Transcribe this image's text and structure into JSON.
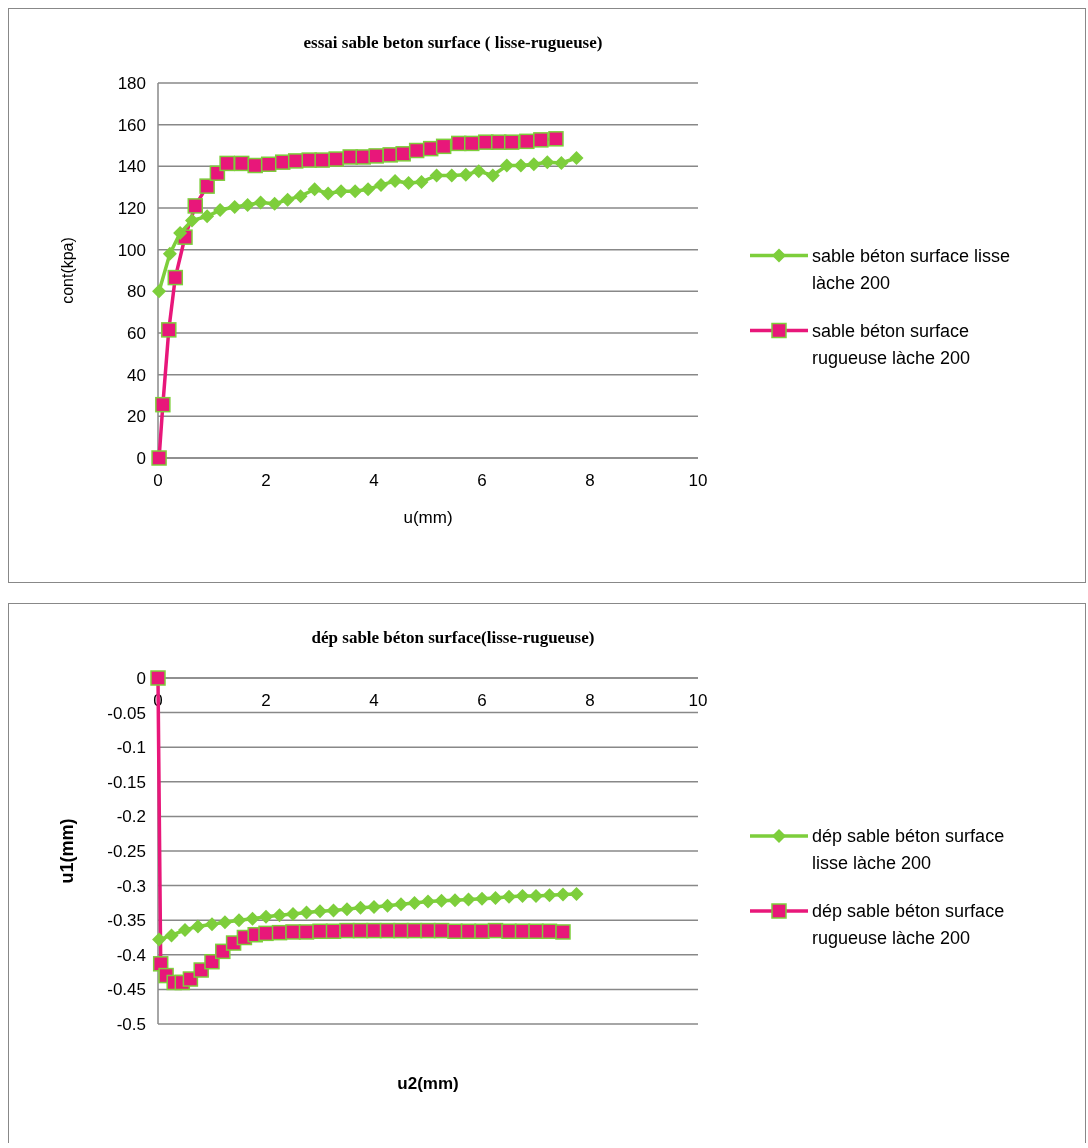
{
  "chart_data": [
    {
      "type": "line",
      "title": "essai sable beton surface ( lisse-rugueuse)",
      "xlabel": "u(mm)",
      "ylabel": "cont(kpa)",
      "xlim": [
        0,
        10
      ],
      "xticks": [
        0,
        2,
        4,
        6,
        8,
        10
      ],
      "ylim": [
        0,
        180
      ],
      "yticks": [
        0,
        20,
        40,
        60,
        80,
        100,
        120,
        140,
        160,
        180
      ],
      "grid": "y",
      "legend": "right",
      "series": [
        {
          "name": "sable béton surface lisse làche 200",
          "color": "#7dce3b",
          "marker": "diamond",
          "x": [
            0.02,
            0.22,
            0.41,
            0.63,
            0.91,
            1.15,
            1.42,
            1.66,
            1.9,
            2.16,
            2.4,
            2.64,
            2.9,
            3.15,
            3.39,
            3.65,
            3.89,
            4.13,
            4.39,
            4.64,
            4.88,
            5.16,
            5.44,
            5.7,
            5.94,
            6.2,
            6.46,
            6.72,
            6.96,
            7.21,
            7.47,
            7.75
          ],
          "values": [
            80,
            98,
            108,
            114,
            116,
            119,
            120.5,
            121.5,
            122.6,
            122,
            124,
            125.7,
            129,
            127,
            128,
            128,
            129,
            131,
            133,
            132,
            132.5,
            135.6,
            135.6,
            136,
            137.7,
            135.6,
            140.4,
            140.4,
            141,
            142,
            141.6,
            144
          ]
        },
        {
          "name": "sable béton surface rugueuse làche 200",
          "color": "#e8177a",
          "marker": "square",
          "x": [
            0.02,
            0.09,
            0.2,
            0.32,
            0.5,
            0.69,
            0.91,
            1.1,
            1.28,
            1.55,
            1.8,
            2.05,
            2.31,
            2.55,
            2.8,
            3.04,
            3.3,
            3.56,
            3.8,
            4.04,
            4.3,
            4.54,
            4.79,
            5.05,
            5.29,
            5.57,
            5.81,
            6.07,
            6.31,
            6.55,
            6.83,
            7.09,
            7.37
          ],
          "values": [
            0,
            25.6,
            61.5,
            86.6,
            106,
            121,
            130.5,
            136.7,
            141.4,
            141.4,
            140.4,
            141,
            142,
            142.6,
            143,
            143,
            143.5,
            144.5,
            144.5,
            145,
            145.5,
            146,
            147.6,
            148.5,
            149.6,
            151,
            151,
            151.6,
            151.6,
            151.6,
            152,
            152.7,
            153.2
          ]
        }
      ]
    },
    {
      "type": "line",
      "title": "dép sable béton surface(lisse-rugueuse)",
      "xlabel": "u2(mm)",
      "ylabel": "u1(mm)",
      "xlim": [
        0,
        10
      ],
      "xticks": [
        0,
        2,
        4,
        6,
        8,
        10
      ],
      "ylim": [
        -0.5,
        0
      ],
      "yticks": [
        -0.5,
        -0.45,
        -0.4,
        -0.35,
        -0.3,
        -0.25,
        -0.2,
        -0.15,
        -0.1,
        -0.05,
        0
      ],
      "grid": "y",
      "legend": "right",
      "series": [
        {
          "name": "dép sable béton surface lisse làche 200",
          "color": "#7dce3b",
          "marker": "diamond",
          "x": [
            0.02,
            0.25,
            0.5,
            0.74,
            1.0,
            1.24,
            1.5,
            1.75,
            2.0,
            2.25,
            2.5,
            2.75,
            3.0,
            3.25,
            3.5,
            3.75,
            4.0,
            4.25,
            4.5,
            4.75,
            5.0,
            5.25,
            5.5,
            5.75,
            6.0,
            6.25,
            6.5,
            6.75,
            7.0,
            7.25,
            7.5,
            7.75
          ],
          "values": [
            -0.378,
            -0.372,
            -0.364,
            -0.359,
            -0.356,
            -0.353,
            -0.35,
            -0.348,
            -0.345,
            -0.343,
            -0.341,
            -0.339,
            -0.337,
            -0.336,
            -0.334,
            -0.332,
            -0.331,
            -0.329,
            -0.327,
            -0.325,
            -0.323,
            -0.322,
            -0.321,
            -0.32,
            -0.319,
            -0.318,
            -0.316,
            -0.315,
            -0.315,
            -0.314,
            -0.313,
            -0.312
          ]
        },
        {
          "name": "dép sable béton surface rugueuse làche 200",
          "color": "#e8177a",
          "marker": "square",
          "x": [
            0.0,
            0.05,
            0.15,
            0.3,
            0.45,
            0.6,
            0.8,
            1.0,
            1.2,
            1.4,
            1.6,
            1.8,
            2.0,
            2.25,
            2.5,
            2.75,
            3.0,
            3.25,
            3.5,
            3.75,
            4.0,
            4.25,
            4.5,
            4.75,
            5.0,
            5.25,
            5.5,
            5.75,
            6.0,
            6.25,
            6.5,
            6.75,
            7.0,
            7.25,
            7.5
          ],
          "values": [
            0,
            -0.413,
            -0.43,
            -0.44,
            -0.44,
            -0.435,
            -0.422,
            -0.41,
            -0.395,
            -0.383,
            -0.375,
            -0.371,
            -0.369,
            -0.368,
            -0.367,
            -0.367,
            -0.366,
            -0.366,
            -0.365,
            -0.365,
            -0.365,
            -0.365,
            -0.365,
            -0.365,
            -0.365,
            -0.365,
            -0.366,
            -0.366,
            -0.366,
            -0.365,
            -0.366,
            -0.366,
            -0.366,
            -0.366,
            -0.367
          ]
        }
      ]
    }
  ]
}
